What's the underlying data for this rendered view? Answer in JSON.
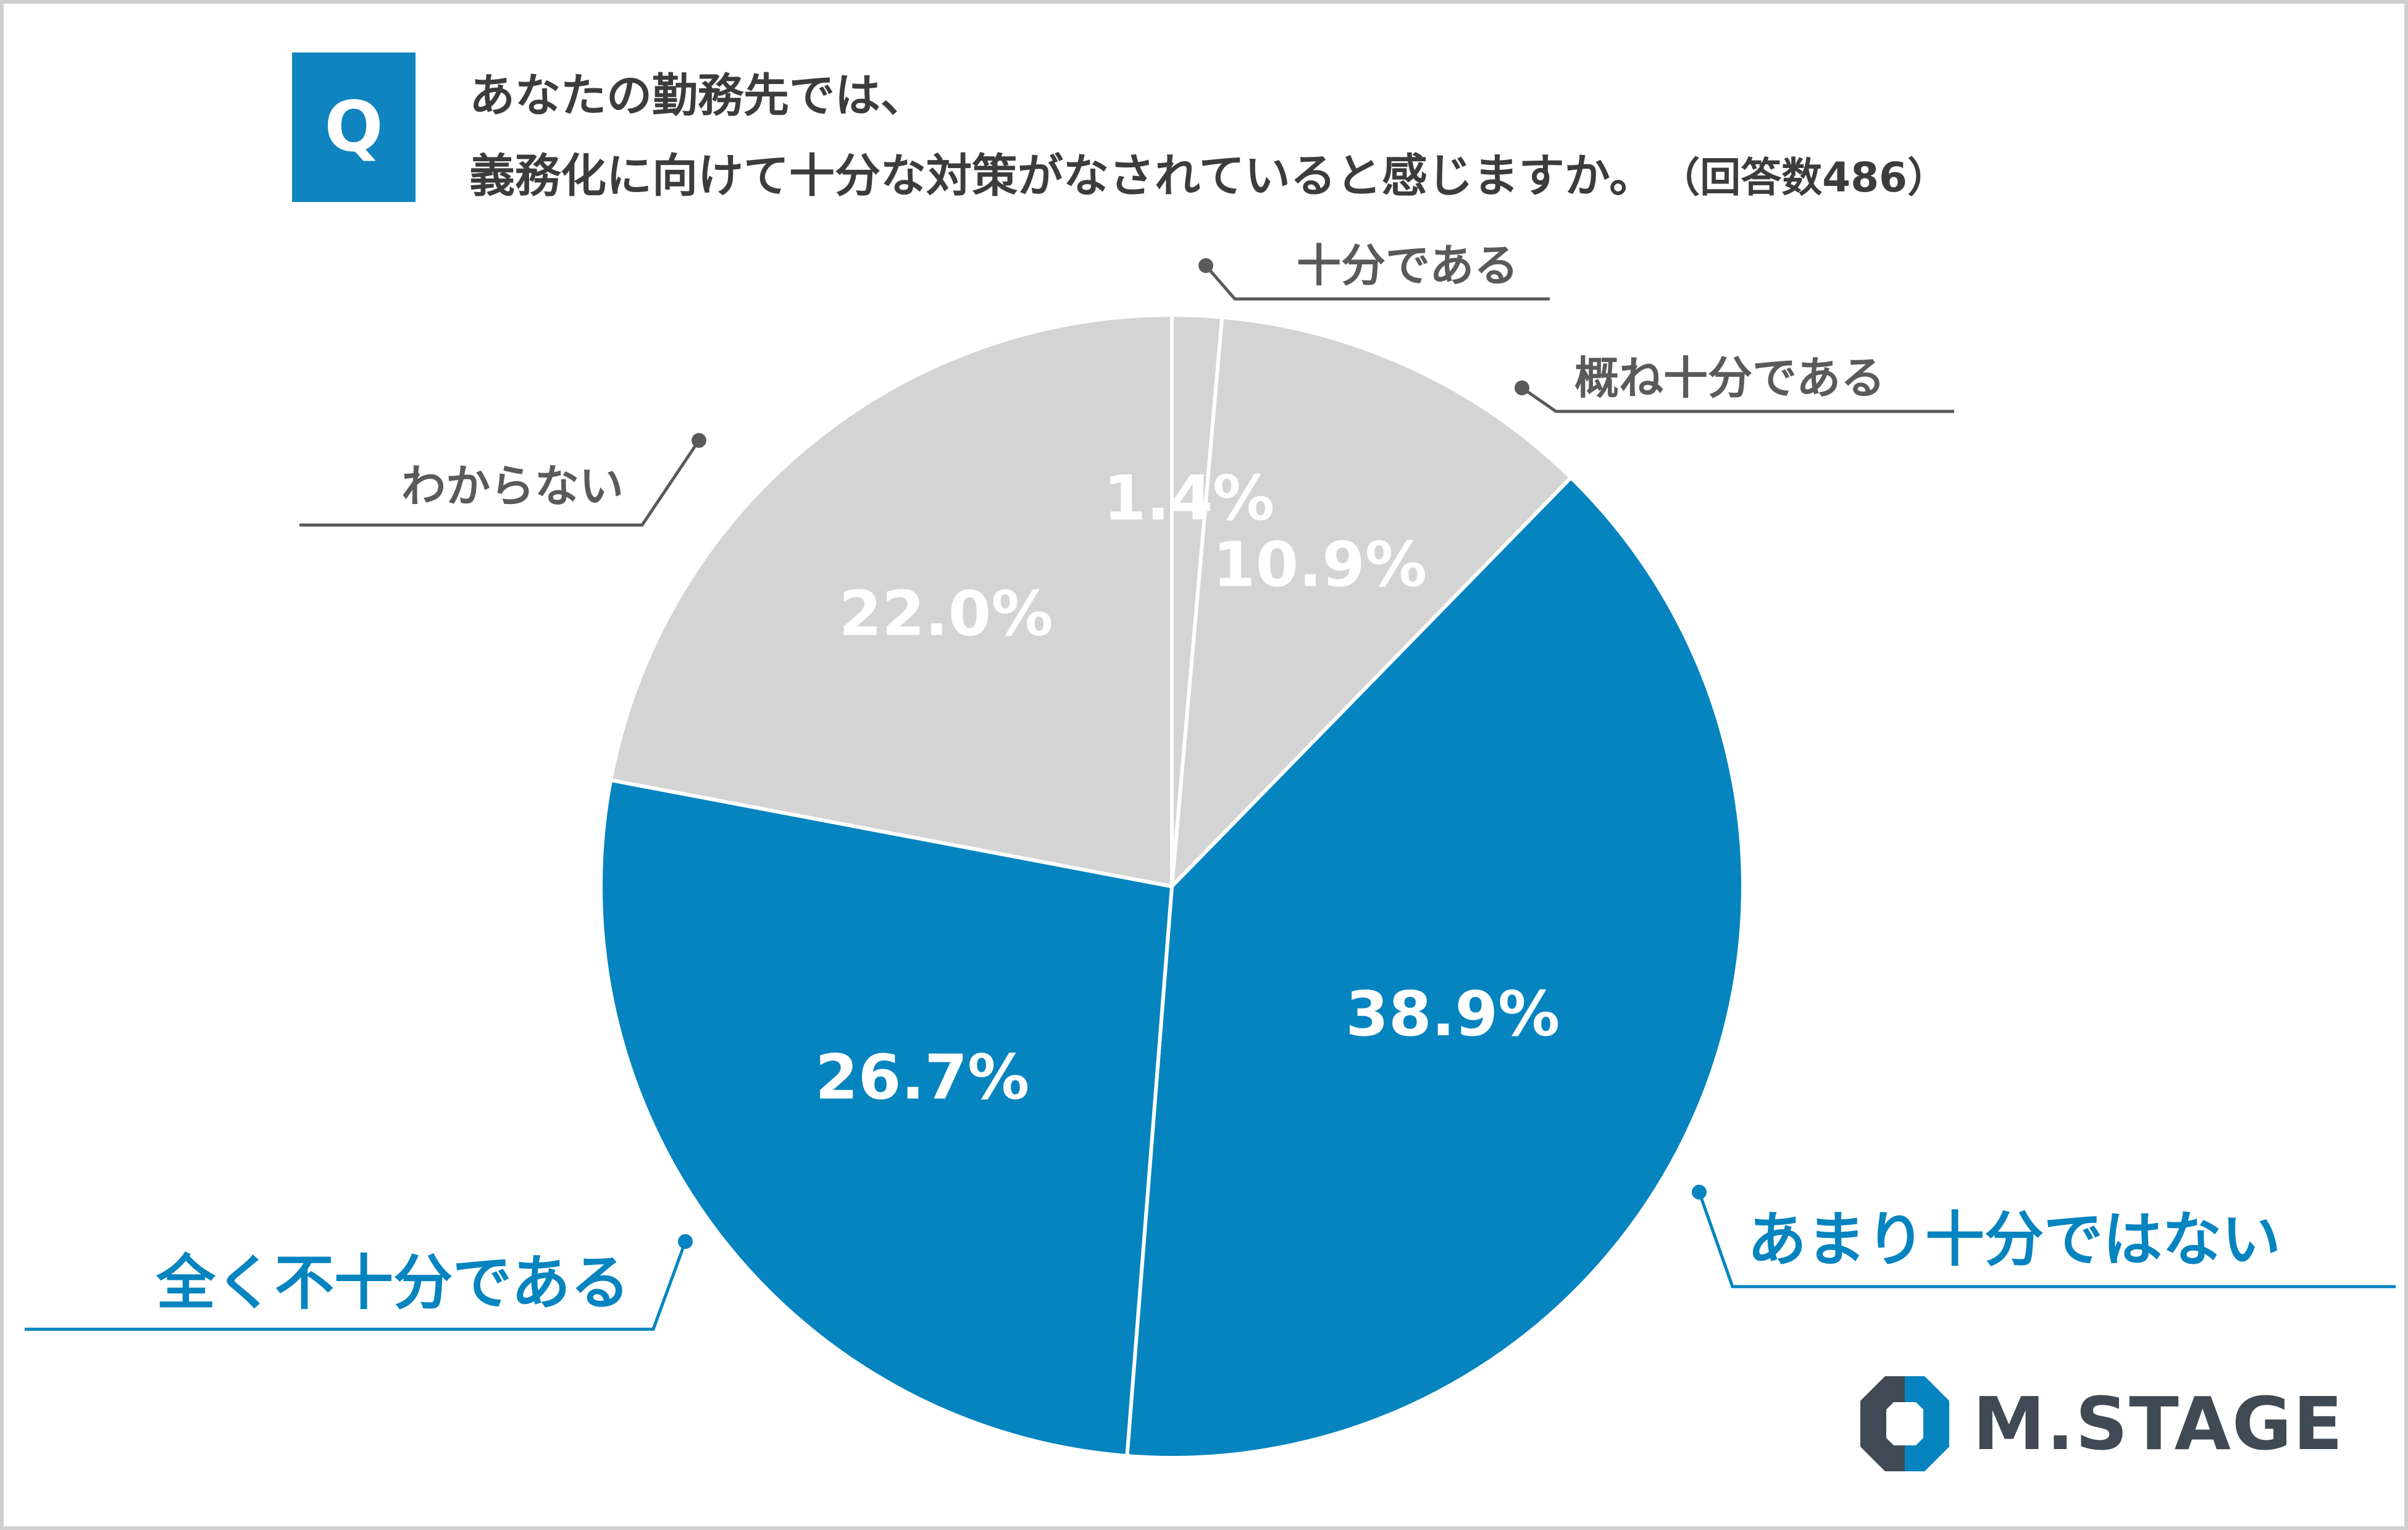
{
  "question": {
    "badge": "Q",
    "line1": "あなたの勤務先では、",
    "line2": "義務化に向けて十分な対策がなされていると感じますか。",
    "count": "（回答数486）"
  },
  "chart_data": {
    "type": "pie",
    "start_angle_deg": 0,
    "direction": "clockwise",
    "slices": [
      {
        "label": "十分である",
        "value": 1.4,
        "display": "1.4%",
        "color": "#d4d4d4",
        "label_color": "#5a5a5a"
      },
      {
        "label": "概ね十分である",
        "value": 10.9,
        "display": "10.9%",
        "color": "#d4d4d4",
        "label_color": "#5a5a5a"
      },
      {
        "label": "あまり十分ではない",
        "value": 38.9,
        "display": "38.9%",
        "color": "#0584bf",
        "label_color": "#0584bf"
      },
      {
        "label": "全く不十分である",
        "value": 26.7,
        "display": "26.7%",
        "color": "#0584bf",
        "label_color": "#0584bf"
      },
      {
        "label": "わからない",
        "value": 22.0,
        "display": "22.0%",
        "color": "#d4d4d4",
        "label_color": "#5a5a5a"
      }
    ]
  },
  "logo": {
    "text": "M.STAGE",
    "color": "#3f4a54",
    "accent": "#0584bf"
  }
}
